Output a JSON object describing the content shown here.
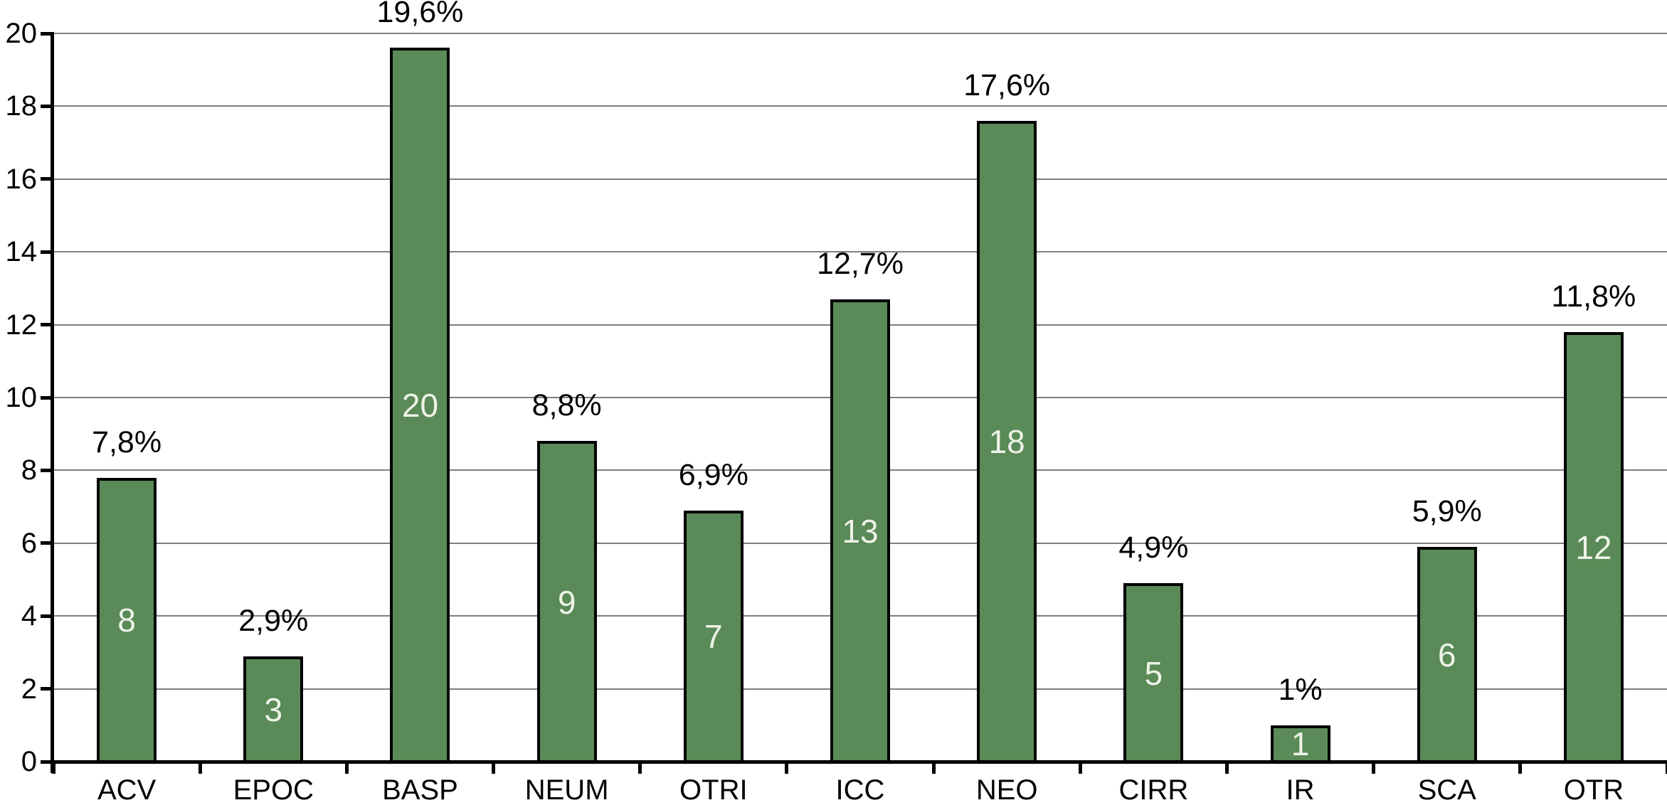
{
  "chart_data": {
    "type": "bar",
    "title": "",
    "xlabel": "",
    "ylabel": "",
    "categories": [
      "ACV",
      "EPOC",
      "BASP",
      "NEUM",
      "OTRI",
      "ICC",
      "NEO",
      "CIRR",
      "IR",
      "SCA",
      "OTR"
    ],
    "series": [
      {
        "name": "percent",
        "values": [
          7.8,
          2.9,
          19.6,
          8.8,
          6.9,
          12.7,
          17.6,
          4.9,
          1.0,
          5.9,
          11.8
        ]
      },
      {
        "name": "count",
        "values": [
          8,
          3,
          20,
          9,
          7,
          13,
          18,
          5,
          1,
          6,
          12
        ]
      }
    ],
    "percent_labels": [
      "7,8%",
      "2,9%",
      "19,6%",
      "8,8%",
      "6,9%",
      "12,7%",
      "17,6%",
      "4,9%",
      "1%",
      "5,9%",
      "11,8%"
    ],
    "count_labels": [
      "8",
      "3",
      "20",
      "9",
      "7",
      "13",
      "18",
      "5",
      "1",
      "6",
      "12"
    ],
    "ylim": [
      0,
      20
    ],
    "yticks": [
      0,
      2,
      4,
      6,
      8,
      10,
      12,
      14,
      16,
      18,
      20
    ],
    "grid": "horizontal",
    "legend": "none",
    "colors": {
      "bar_fill": "#5a8a57",
      "bar_border": "#000000",
      "bar_count_text": "#edf3e8",
      "axis": "#000000",
      "gridline": "#7f7f7f",
      "label_text": "#000000",
      "background": "#ffffff"
    }
  }
}
